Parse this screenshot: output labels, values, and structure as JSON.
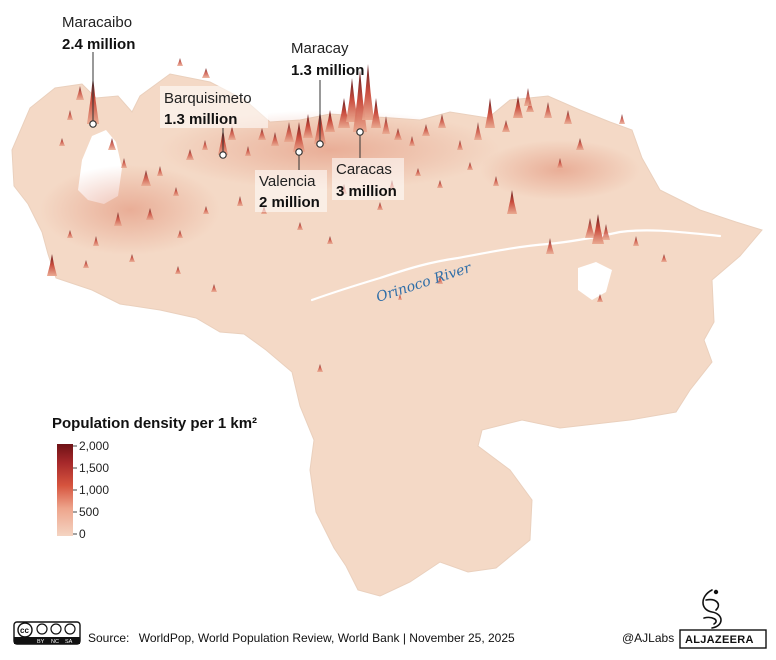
{
  "cities": [
    {
      "name": "Maracaibo",
      "population": "2.4 million"
    },
    {
      "name": "Barquisimeto",
      "population": "1.3 million"
    },
    {
      "name": "Maracay",
      "population": "1.3 million"
    },
    {
      "name": "Valencia",
      "population": "2 million"
    },
    {
      "name": "Caracas",
      "population": "3 million"
    }
  ],
  "river": {
    "label": "Orinoco River"
  },
  "legend": {
    "title": "Population density per 1 km²",
    "ticks": [
      "2,000",
      "1,500",
      "1,000",
      "500",
      "0"
    ],
    "colors": [
      "#6e1216",
      "#a6282a",
      "#d6543e",
      "#eea58c",
      "#f4d4c2"
    ]
  },
  "footer": {
    "source_label": "Source:",
    "source_text": "WorldPop, World Population Review, World Bank | November 25, 2025",
    "handle": "@AJLabs",
    "brand": "ALJAZEERA",
    "license_badge": {
      "cc": "cc",
      "by": "BY",
      "nc": "NC",
      "sa": "SA"
    }
  },
  "colors": {
    "land": "#f4d9c6",
    "peak_dark": "#8a1c1c",
    "peak_mid": "#d25a44",
    "river": "#ffffff",
    "water": "#ffffff"
  }
}
